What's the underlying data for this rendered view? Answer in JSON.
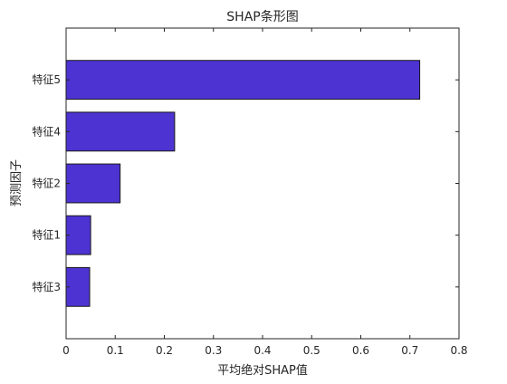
{
  "chart_data": {
    "type": "bar",
    "orientation": "horizontal",
    "title": "SHAP条形图",
    "xlabel": "平均绝对SHAP值",
    "ylabel": "预测因子",
    "categories": [
      "特征3",
      "特征1",
      "特征2",
      "特征4",
      "特征5"
    ],
    "values": [
      0.048,
      0.05,
      0.11,
      0.221,
      0.72
    ],
    "xlim": [
      0,
      0.8
    ],
    "xticks": [
      0,
      0.1,
      0.2,
      0.3,
      0.4,
      0.5,
      0.6,
      0.7,
      0.8
    ],
    "xtick_labels": [
      "0",
      "0.1",
      "0.2",
      "0.3",
      "0.4",
      "0.5",
      "0.6",
      "0.7",
      "0.8"
    ],
    "grid": true,
    "bar_color": "#4d33d1",
    "legend": null
  }
}
